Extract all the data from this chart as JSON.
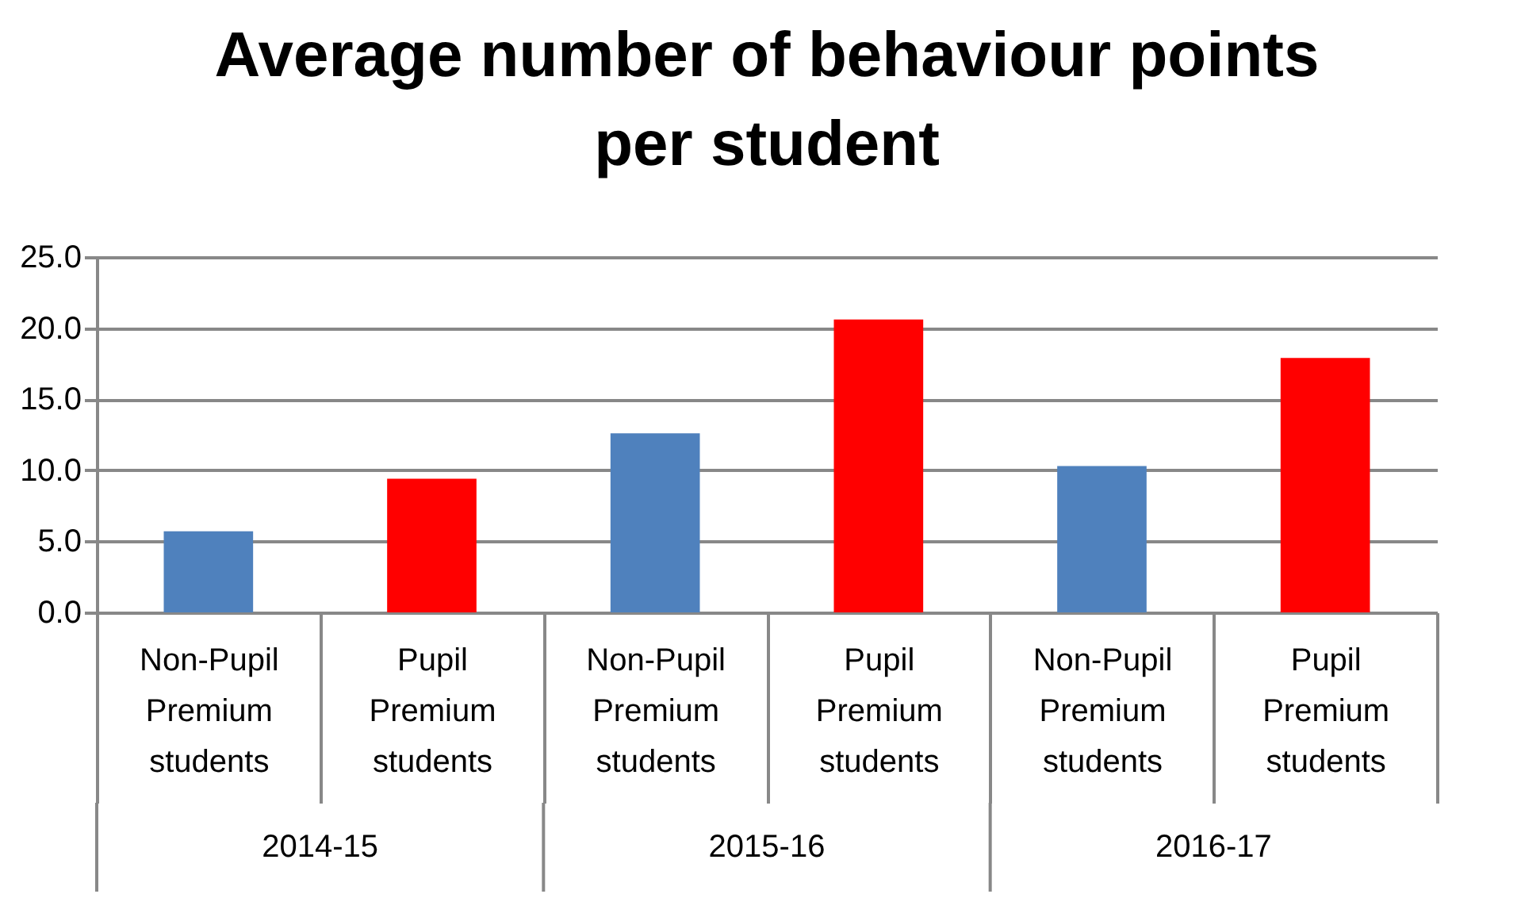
{
  "chart_data": {
    "type": "bar",
    "title": "Average number of behaviour points per student",
    "categories": [
      "Non-Pupil Premium students",
      "Pupil Premium students",
      "Non-Pupil Premium students",
      "Pupil Premium students",
      "Non-Pupil Premium students",
      "Pupil Premium students"
    ],
    "values": [
      5.7,
      9.4,
      12.6,
      20.6,
      10.3,
      17.9
    ],
    "colors": [
      "#4f81bd",
      "#ff0000",
      "#4f81bd",
      "#ff0000",
      "#4f81bd",
      "#ff0000"
    ],
    "annotations": [
      "2014-15",
      "2015-16",
      "2016-17"
    ],
    "ylim": [
      0,
      25
    ],
    "yticks": [
      {
        "value": 0,
        "label": "0.0"
      },
      {
        "value": 5,
        "label": "5.0"
      },
      {
        "value": 10,
        "label": "10.0"
      },
      {
        "value": 15,
        "label": "15.0"
      },
      {
        "value": 20,
        "label": "20.0"
      },
      {
        "value": 25,
        "label": "25.0"
      }
    ],
    "grid": "y",
    "legend": false
  }
}
